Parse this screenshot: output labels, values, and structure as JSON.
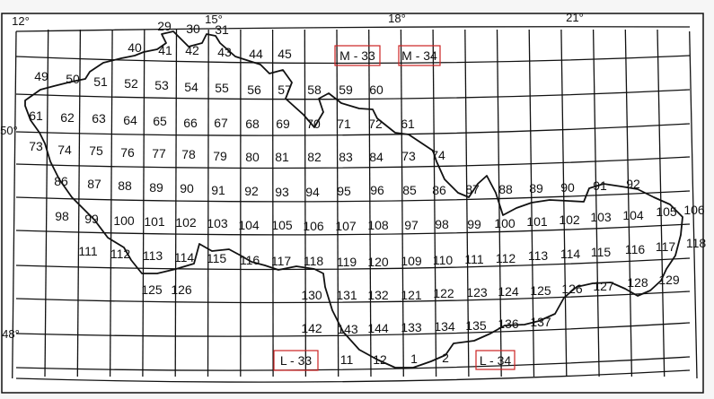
{
  "map": {
    "degree_labels": [
      "12°",
      "15°",
      "18°",
      "21°",
      "50°",
      "48°"
    ],
    "sheet_boxes": [
      "M - 33",
      "M - 34",
      "L - 33",
      "L - 34"
    ],
    "box_color": "#cc2222",
    "line_color": "#111111",
    "top_labels": [
      "29",
      "30",
      "31"
    ],
    "rows": [
      [
        "40",
        "41",
        "42",
        "43",
        "44",
        "45"
      ],
      [
        "49",
        "50",
        "51",
        "52",
        "53",
        "54",
        "55",
        "56",
        "57",
        "58",
        "59",
        "60"
      ],
      [
        "61",
        "62",
        "63",
        "64",
        "65",
        "66",
        "67",
        "68",
        "69",
        "70",
        "71",
        "72",
        "61"
      ],
      [
        "73",
        "74",
        "75",
        "76",
        "77",
        "78",
        "79",
        "80",
        "81",
        "82",
        "83",
        "84",
        "73",
        "74"
      ],
      [
        "86",
        "87",
        "88",
        "89",
        "90",
        "91",
        "92",
        "93",
        "94",
        "95",
        "96",
        "85",
        "86",
        "87",
        "88",
        "89",
        "90",
        "91",
        "92"
      ],
      [
        "98",
        "99",
        "100",
        "101",
        "102",
        "103",
        "104",
        "105",
        "106",
        "107",
        "108",
        "97",
        "98",
        "99",
        "100",
        "101",
        "102",
        "103",
        "104",
        "105",
        "106"
      ],
      [
        "111",
        "112",
        "113",
        "114",
        "115",
        "116",
        "117",
        "118",
        "119",
        "120",
        "109",
        "110",
        "111",
        "112",
        "113",
        "114",
        "115",
        "116",
        "117",
        "118"
      ],
      [
        "125",
        "126",
        "130",
        "131",
        "132",
        "121",
        "122",
        "123",
        "124",
        "125",
        "126",
        "127",
        "128",
        "129"
      ],
      [
        "142",
        "143",
        "144",
        "133",
        "134",
        "135",
        "136",
        "137"
      ],
      [
        "11",
        "12",
        "1",
        "2"
      ]
    ]
  }
}
